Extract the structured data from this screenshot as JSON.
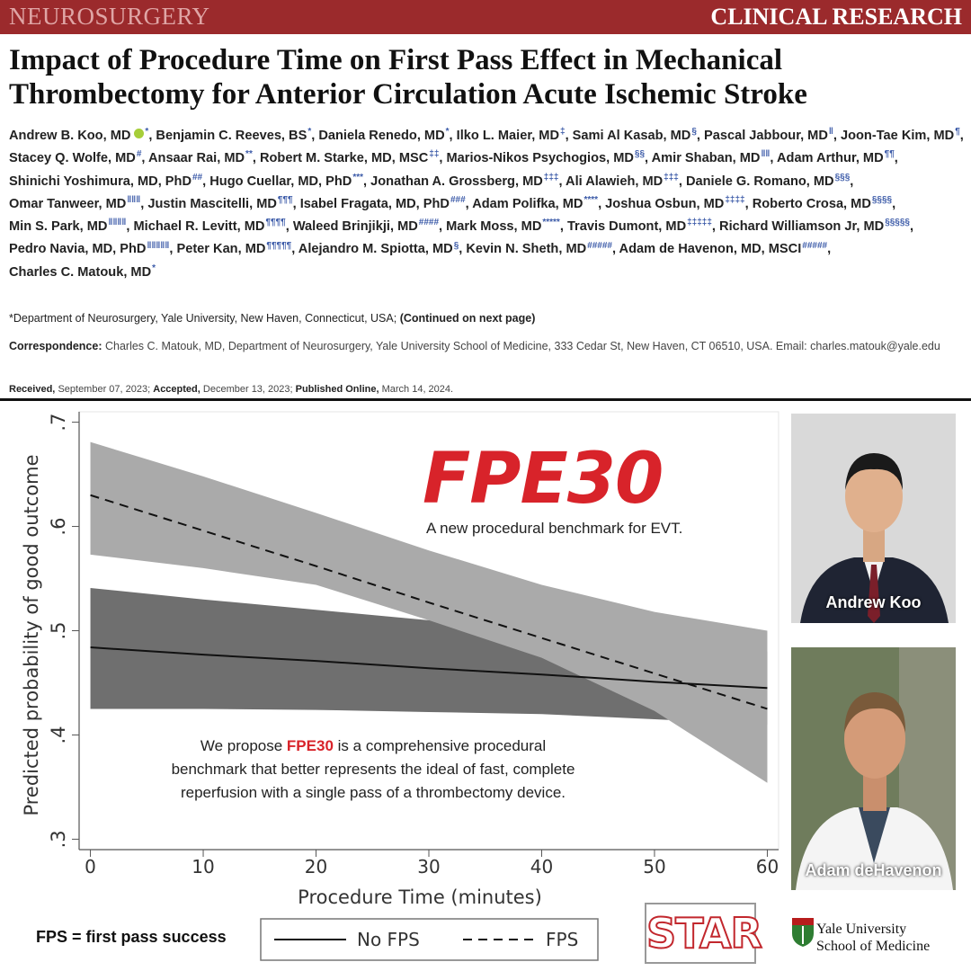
{
  "header": {
    "journal": "NEUROSURGERY",
    "section": "CLINICAL RESEARCH"
  },
  "title_lines": [
    "Impact of Procedure Time on First Pass Effect in Mechanical",
    "Thrombectomy for Anterior Circulation Acute Ischemic Stroke"
  ],
  "authors": [
    {
      "name": "Andrew B. Koo, MD",
      "mark": "*"
    },
    {
      "name": "Benjamin C. Reeves, BS",
      "mark": "*"
    },
    {
      "name": "Daniela Renedo, MD",
      "mark": "*"
    },
    {
      "name": "Ilko L. Maier, MD",
      "mark": "‡"
    },
    {
      "name": "Sami Al Kasab, MD",
      "mark": "§"
    },
    {
      "name": "Pascal Jabbour, MD",
      "mark": "‖"
    },
    {
      "name": "Joon-Tae Kim, MD",
      "mark": "¶"
    },
    {
      "name": "Stacey Q. Wolfe, MD",
      "mark": "#"
    },
    {
      "name": "Ansaar Rai, MD",
      "mark": "**"
    },
    {
      "name": "Robert M. Starke, MD, MSC",
      "mark": "‡‡"
    },
    {
      "name": "Marios-Nikos Psychogios, MD",
      "mark": "§§"
    },
    {
      "name": "Amir Shaban, MD",
      "mark": "‖‖"
    },
    {
      "name": "Adam Arthur, MD",
      "mark": "¶¶"
    },
    {
      "name": "Shinichi Yoshimura, MD, PhD",
      "mark": "##"
    },
    {
      "name": "Hugo Cuellar, MD, PhD",
      "mark": "***"
    },
    {
      "name": "Jonathan A. Grossberg, MD",
      "mark": "‡‡‡"
    },
    {
      "name": "Ali Alawieh, MD",
      "mark": "‡‡‡"
    },
    {
      "name": "Daniele G. Romano, MD",
      "mark": "§§§"
    },
    {
      "name": "Omar Tanweer, MD",
      "mark": "‖‖‖"
    },
    {
      "name": "Justin Mascitelli, MD",
      "mark": "¶¶¶"
    },
    {
      "name": "Isabel Fragata, MD, PhD",
      "mark": "###"
    },
    {
      "name": "Adam Polifka, MD",
      "mark": "****"
    },
    {
      "name": "Joshua Osbun, MD",
      "mark": "‡‡‡‡"
    },
    {
      "name": "Roberto Crosa, MD",
      "mark": "§§§§"
    },
    {
      "name": "Min S. Park, MD",
      "mark": "‖‖‖‖"
    },
    {
      "name": "Michael R. Levitt, MD",
      "mark": "¶¶¶¶"
    },
    {
      "name": "Waleed Brinjikji, MD",
      "mark": "####"
    },
    {
      "name": "Mark Moss, MD",
      "mark": "*****"
    },
    {
      "name": "Travis Dumont, MD",
      "mark": "‡‡‡‡‡"
    },
    {
      "name": "Richard Williamson Jr, MD",
      "mark": "§§§§§"
    },
    {
      "name": "Pedro Navia, MD, PhD",
      "mark": "‖‖‖‖‖"
    },
    {
      "name": "Peter Kan, MD",
      "mark": "¶¶¶¶¶"
    },
    {
      "name": "Alejandro M. Spiotta, MD",
      "mark": "§"
    },
    {
      "name": "Kevin N. Sheth, MD",
      "mark": "#####"
    },
    {
      "name": "Adam de Havenon, MD, MSCI",
      "mark": "#####"
    },
    {
      "name": "Charles C. Matouk, MD",
      "mark": "*"
    }
  ],
  "footnote": {
    "text": "*Department of Neurosurgery, Yale University, New Haven, Connecticut, USA;",
    "continued": "(Continued on next page)"
  },
  "correspondence": {
    "label": "Correspondence:",
    "text": "Charles C. Matouk, MD, Department of Neurosurgery, Yale University School of Medicine, 333 Cedar St, New Haven, CT 06510, USA. Email: charles.matouk@yale.edu"
  },
  "dates": {
    "received_label": "Received,",
    "received": "September 07, 2023;",
    "accepted_label": "Accepted,",
    "accepted": "December 13, 2023;",
    "published_label": "Published Online,",
    "published": "March 14, 2024."
  },
  "chart_data": {
    "type": "line",
    "x_label": "Procedure Time (minutes)",
    "y_label": "Predicted probability of good outcome",
    "x": [
      0,
      10,
      20,
      30,
      40,
      50,
      60
    ],
    "xlim": [
      -1,
      61
    ],
    "ylim": [
      0.29,
      0.71
    ],
    "xticks": [
      0,
      10,
      20,
      30,
      40,
      50,
      60
    ],
    "yticks": [
      {
        "value": 0.3,
        "label": ".3"
      },
      {
        "value": 0.4,
        "label": ".4"
      },
      {
        "value": 0.5,
        "label": ".5"
      },
      {
        "value": 0.6,
        "label": ".6"
      },
      {
        "value": 0.7,
        "label": ".7"
      }
    ],
    "grid": false,
    "series": [
      {
        "name": "No FPS",
        "color": "#111111",
        "line_style": "solid",
        "band_color": "#6f6f6f",
        "values": [
          0.484,
          0.477,
          0.471,
          0.464,
          0.458,
          0.451,
          0.445
        ],
        "upper": [
          0.541,
          0.53,
          0.52,
          0.51,
          0.5,
          0.49,
          0.48
        ],
        "lower": [
          0.425,
          0.425,
          0.424,
          0.422,
          0.42,
          0.415,
          0.41
        ]
      },
      {
        "name": "FPS",
        "color": "#111111",
        "line_style": "dashed",
        "band_color": "#aaaaaa",
        "values": [
          0.63,
          0.596,
          0.562,
          0.527,
          0.493,
          0.459,
          0.425
        ],
        "upper": [
          0.681,
          0.648,
          0.613,
          0.577,
          0.544,
          0.518,
          0.5
        ],
        "lower": [
          0.573,
          0.56,
          0.544,
          0.51,
          0.474,
          0.423,
          0.354
        ]
      }
    ],
    "annotations": {
      "headline": "FPE30",
      "subhead": "A new procedural benchmark for EVT.",
      "proposal": {
        "before": "We propose",
        "highlight": "FPE30",
        "after": "is a comprehensive procedural benchmark that better represents the ideal of fast, complete reperfusion with a single pass of a thrombectomy device."
      },
      "legend_note": "FPS = first pass success"
    }
  },
  "photos": [
    {
      "caption": "Andrew Koo"
    },
    {
      "caption": "Adam  deHavenon"
    }
  ],
  "logos": {
    "star": "STAR",
    "yale_line1": "Yale University",
    "yale_line2": "School of Medicine"
  }
}
